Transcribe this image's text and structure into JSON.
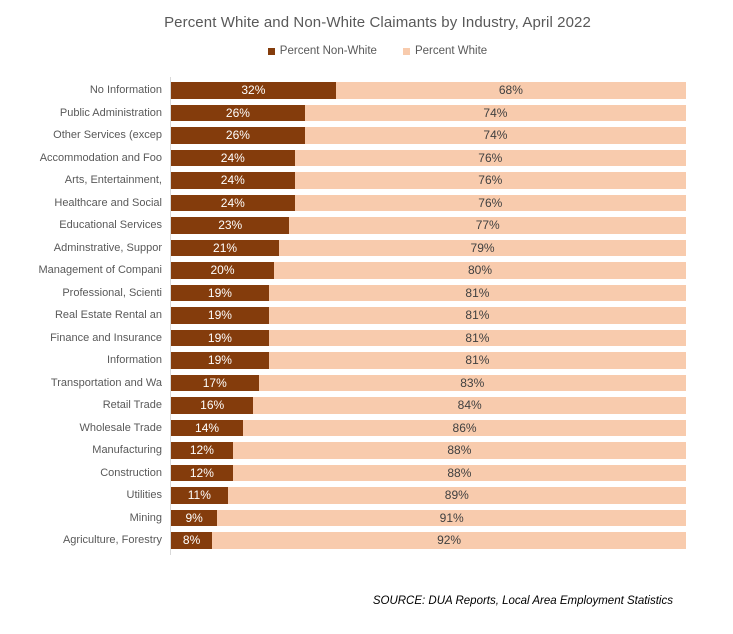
{
  "title": "Percent White and Non-White Claimants by Industry, April 2022",
  "source": "SOURCE: DUA Reports, Local Area Employment Statistics",
  "colors": {
    "nonwhite_bar": "#843C0C",
    "white_bar": "#F8CBAD",
    "title_text": "#595959",
    "category_text": "#595959",
    "data_label_on_dark": "#FFFFFF",
    "data_label_on_light": "#404040",
    "axis_line": "#D9D9D9",
    "background": "#FFFFFF"
  },
  "chart_data": {
    "type": "bar",
    "orientation": "horizontal-stacked",
    "title": "Percent White and Non-White Claimants by Industry, April 2022",
    "xlabel": "",
    "ylabel": "",
    "xlim": [
      0,
      100
    ],
    "grid": false,
    "legend_position": "top",
    "data_labels": "percent",
    "categories": [
      "No Information",
      "Public Administration",
      "Other Services (excep",
      "Accommodation and Foo",
      "Arts, Entertainment,",
      "Healthcare and Social",
      "Educational Services",
      "Adminstrative, Suppor",
      "Management of Compani",
      "Professional, Scienti",
      "Real Estate Rental an",
      "Finance and Insurance",
      "Information",
      "Transportation and Wa",
      "Retail Trade",
      "Wholesale Trade",
      "Manufacturing",
      "Construction",
      "Utilities",
      "Mining",
      "Agriculture, Forestry"
    ],
    "series": [
      {
        "name": "Percent Non-White",
        "color": "#843C0C",
        "values": [
          32,
          26,
          26,
          24,
          24,
          24,
          23,
          21,
          20,
          19,
          19,
          19,
          19,
          17,
          16,
          14,
          12,
          12,
          11,
          9,
          8
        ]
      },
      {
        "name": "Percent White",
        "color": "#F8CBAD",
        "values": [
          68,
          74,
          74,
          76,
          76,
          76,
          77,
          79,
          80,
          81,
          81,
          81,
          81,
          83,
          84,
          86,
          88,
          88,
          89,
          91,
          92
        ]
      }
    ]
  }
}
